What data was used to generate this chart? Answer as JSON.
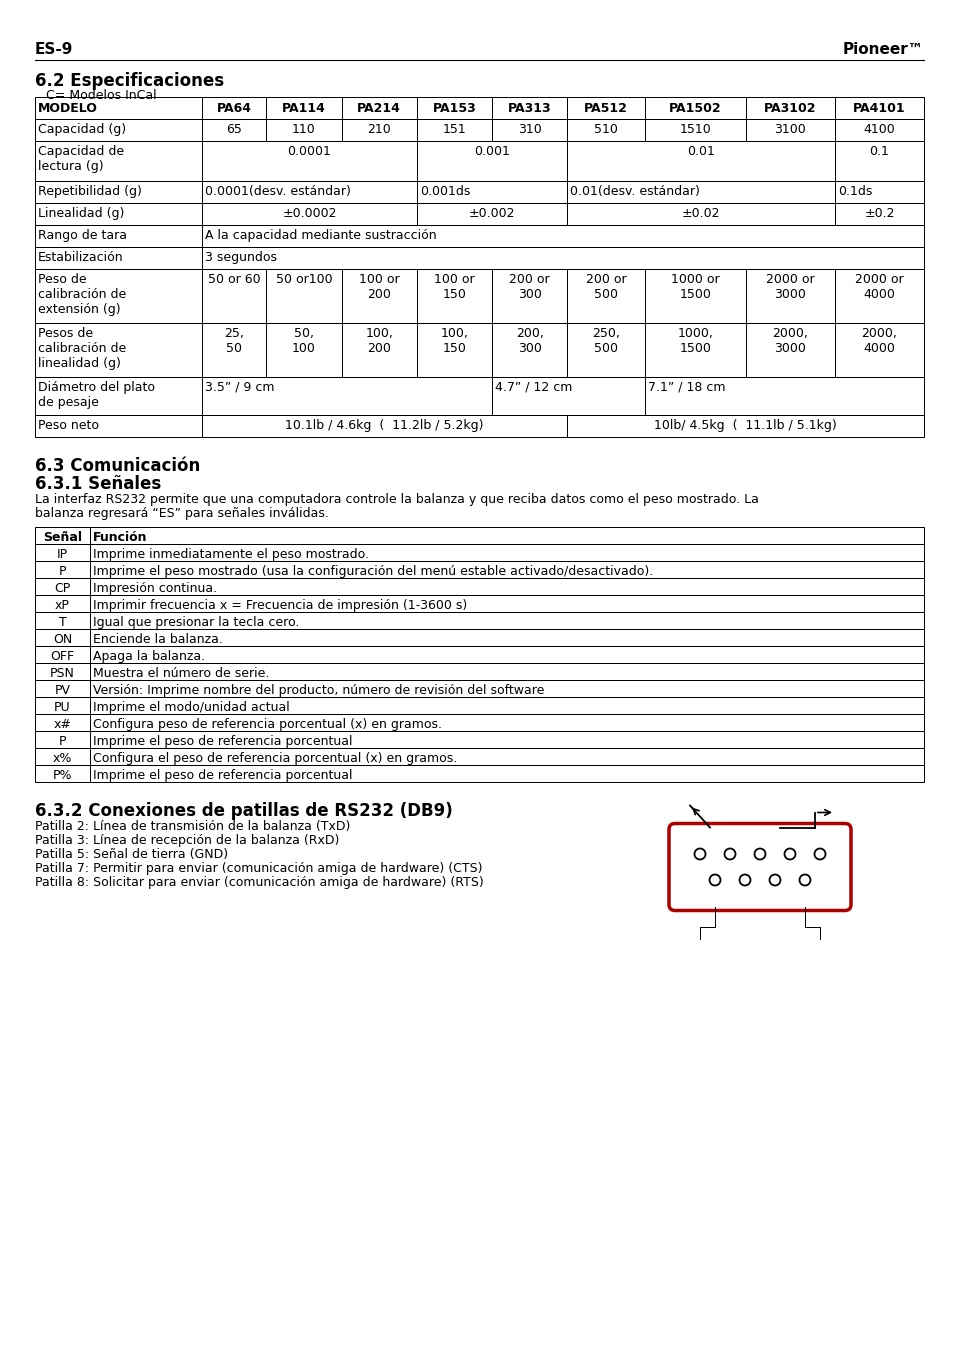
{
  "header_left": "ES-9",
  "header_right": "Pioneer™",
  "section_title1": "6.2 Especificaciones",
  "subtitle1": " C= Modelos InCal",
  "table1_header": [
    "MODELO",
    "PA64",
    "PA114",
    "PA214",
    "PA153",
    "PA313",
    "PA512",
    "PA1502",
    "PA3102",
    "PA4101"
  ],
  "table1_rows": [
    [
      "Capacidad (g)",
      "65",
      "110",
      "210",
      "151",
      "310",
      "510",
      "1510",
      "3100",
      "4100"
    ],
    [
      "Capacidad de\nlectura (g)",
      "0.0001",
      "",
      "",
      "0.001",
      "",
      "0.01",
      "",
      "",
      "0.1"
    ],
    [
      "Repetibilidad (g)",
      "0.0001(desv. estándar)",
      "",
      "",
      "0.001ds",
      "",
      "0.01(desv. estándar)",
      "",
      "",
      "0.1ds"
    ],
    [
      "Linealidad (g)",
      "±0.0002",
      "",
      "",
      "±0.002",
      "",
      "±0.02",
      "",
      "",
      "±0.2"
    ],
    [
      "Rango de tara",
      "A la capacidad mediante sustracción",
      "",
      "",
      "",
      "",
      "",
      "",
      "",
      ""
    ],
    [
      "Estabilización",
      "3 segundos",
      "",
      "",
      "",
      "",
      "",
      "",
      "",
      ""
    ],
    [
      "Peso de\ncalibración de\nextensión (g)",
      "50 or 60",
      "50 or100",
      "100 or\n200",
      "100 or\n150",
      "200 or\n300",
      "200 or\n500",
      "1000 or\n1500",
      "2000 or\n3000",
      "2000 or\n4000"
    ],
    [
      "Pesos de\ncalibración de\nlinealidad (g)",
      "25,\n50",
      "50,\n100",
      "100,\n200",
      "100,\n150",
      "200,\n300",
      "250,\n500",
      "1000,\n1500",
      "2000,\n3000",
      "2000,\n4000"
    ],
    [
      "Diámetro del plato\nde pesaje",
      "3.5\" / 9 cm",
      "",
      "",
      "",
      "4.7\" / 12 cm",
      "",
      "7.1\" / 18 cm",
      "",
      "",
      ""
    ],
    [
      "Peso neto",
      "10.1lb / 4.6kg  (  11.2lb / 5.2kg)",
      "",
      "",
      "",
      "",
      "10lb/ 4.5kg  (  11.1lb / 5.1kg)",
      "",
      "",
      ""
    ]
  ],
  "section_title2": "6.3 Comunicación",
  "section_title3": "6.3.1 Señales",
  "para1_line1": "La interfaz RS232 permite que una computadora controle la balanza y que reciba datos como el peso mostrado. La",
  "para1_line2": "balanza regresará “ES” para señales inválidas.",
  "table2_header": [
    "Señal",
    "Función"
  ],
  "table2_rows": [
    [
      "IP",
      "Imprime inmediatamente el peso mostrado."
    ],
    [
      "P",
      "Imprime el peso mostrado (usa la configuración del menú estable activado/desactivado)."
    ],
    [
      "CP",
      "Impresión continua."
    ],
    [
      "xP",
      "Imprimir frecuencia x = Frecuencia de impresión (1-3600 s)"
    ],
    [
      "T",
      "Igual que presionar la tecla cero."
    ],
    [
      "ON",
      "Enciende la balanza."
    ],
    [
      "OFF",
      "Apaga la balanza."
    ],
    [
      "PSN",
      "Muestra el número de serie."
    ],
    [
      "PV",
      "Versión: Imprime nombre del producto, número de revisión del software"
    ],
    [
      "PU",
      "Imprime el modo/unidad actual"
    ],
    [
      "x#",
      "Configura peso de referencia porcentual (x) en gramos."
    ],
    [
      "P",
      "Imprime el peso de referencia porcentual"
    ],
    [
      "x%",
      "Configura el peso de referencia porcentual (x) en gramos."
    ],
    [
      "P%",
      "Imprime el peso de referencia porcentual"
    ]
  ],
  "section_title4": "6.3.2 Conexiones de patillas de RS232 (DB9)",
  "patillas": [
    "Patilla 2: Línea de transmisión de la balanza (TxD)",
    "Patilla 3: Línea de recepción de la balanza (RxD)",
    "Patilla 5: Señal de tierra (GND)",
    "Patilla 7: Permitir para enviar (comunicación amiga de hardware) (CTS)",
    "Patilla 8: Solicitar para enviar (comunicación amiga de hardware) (RTS)"
  ],
  "bg_color": "#ffffff"
}
